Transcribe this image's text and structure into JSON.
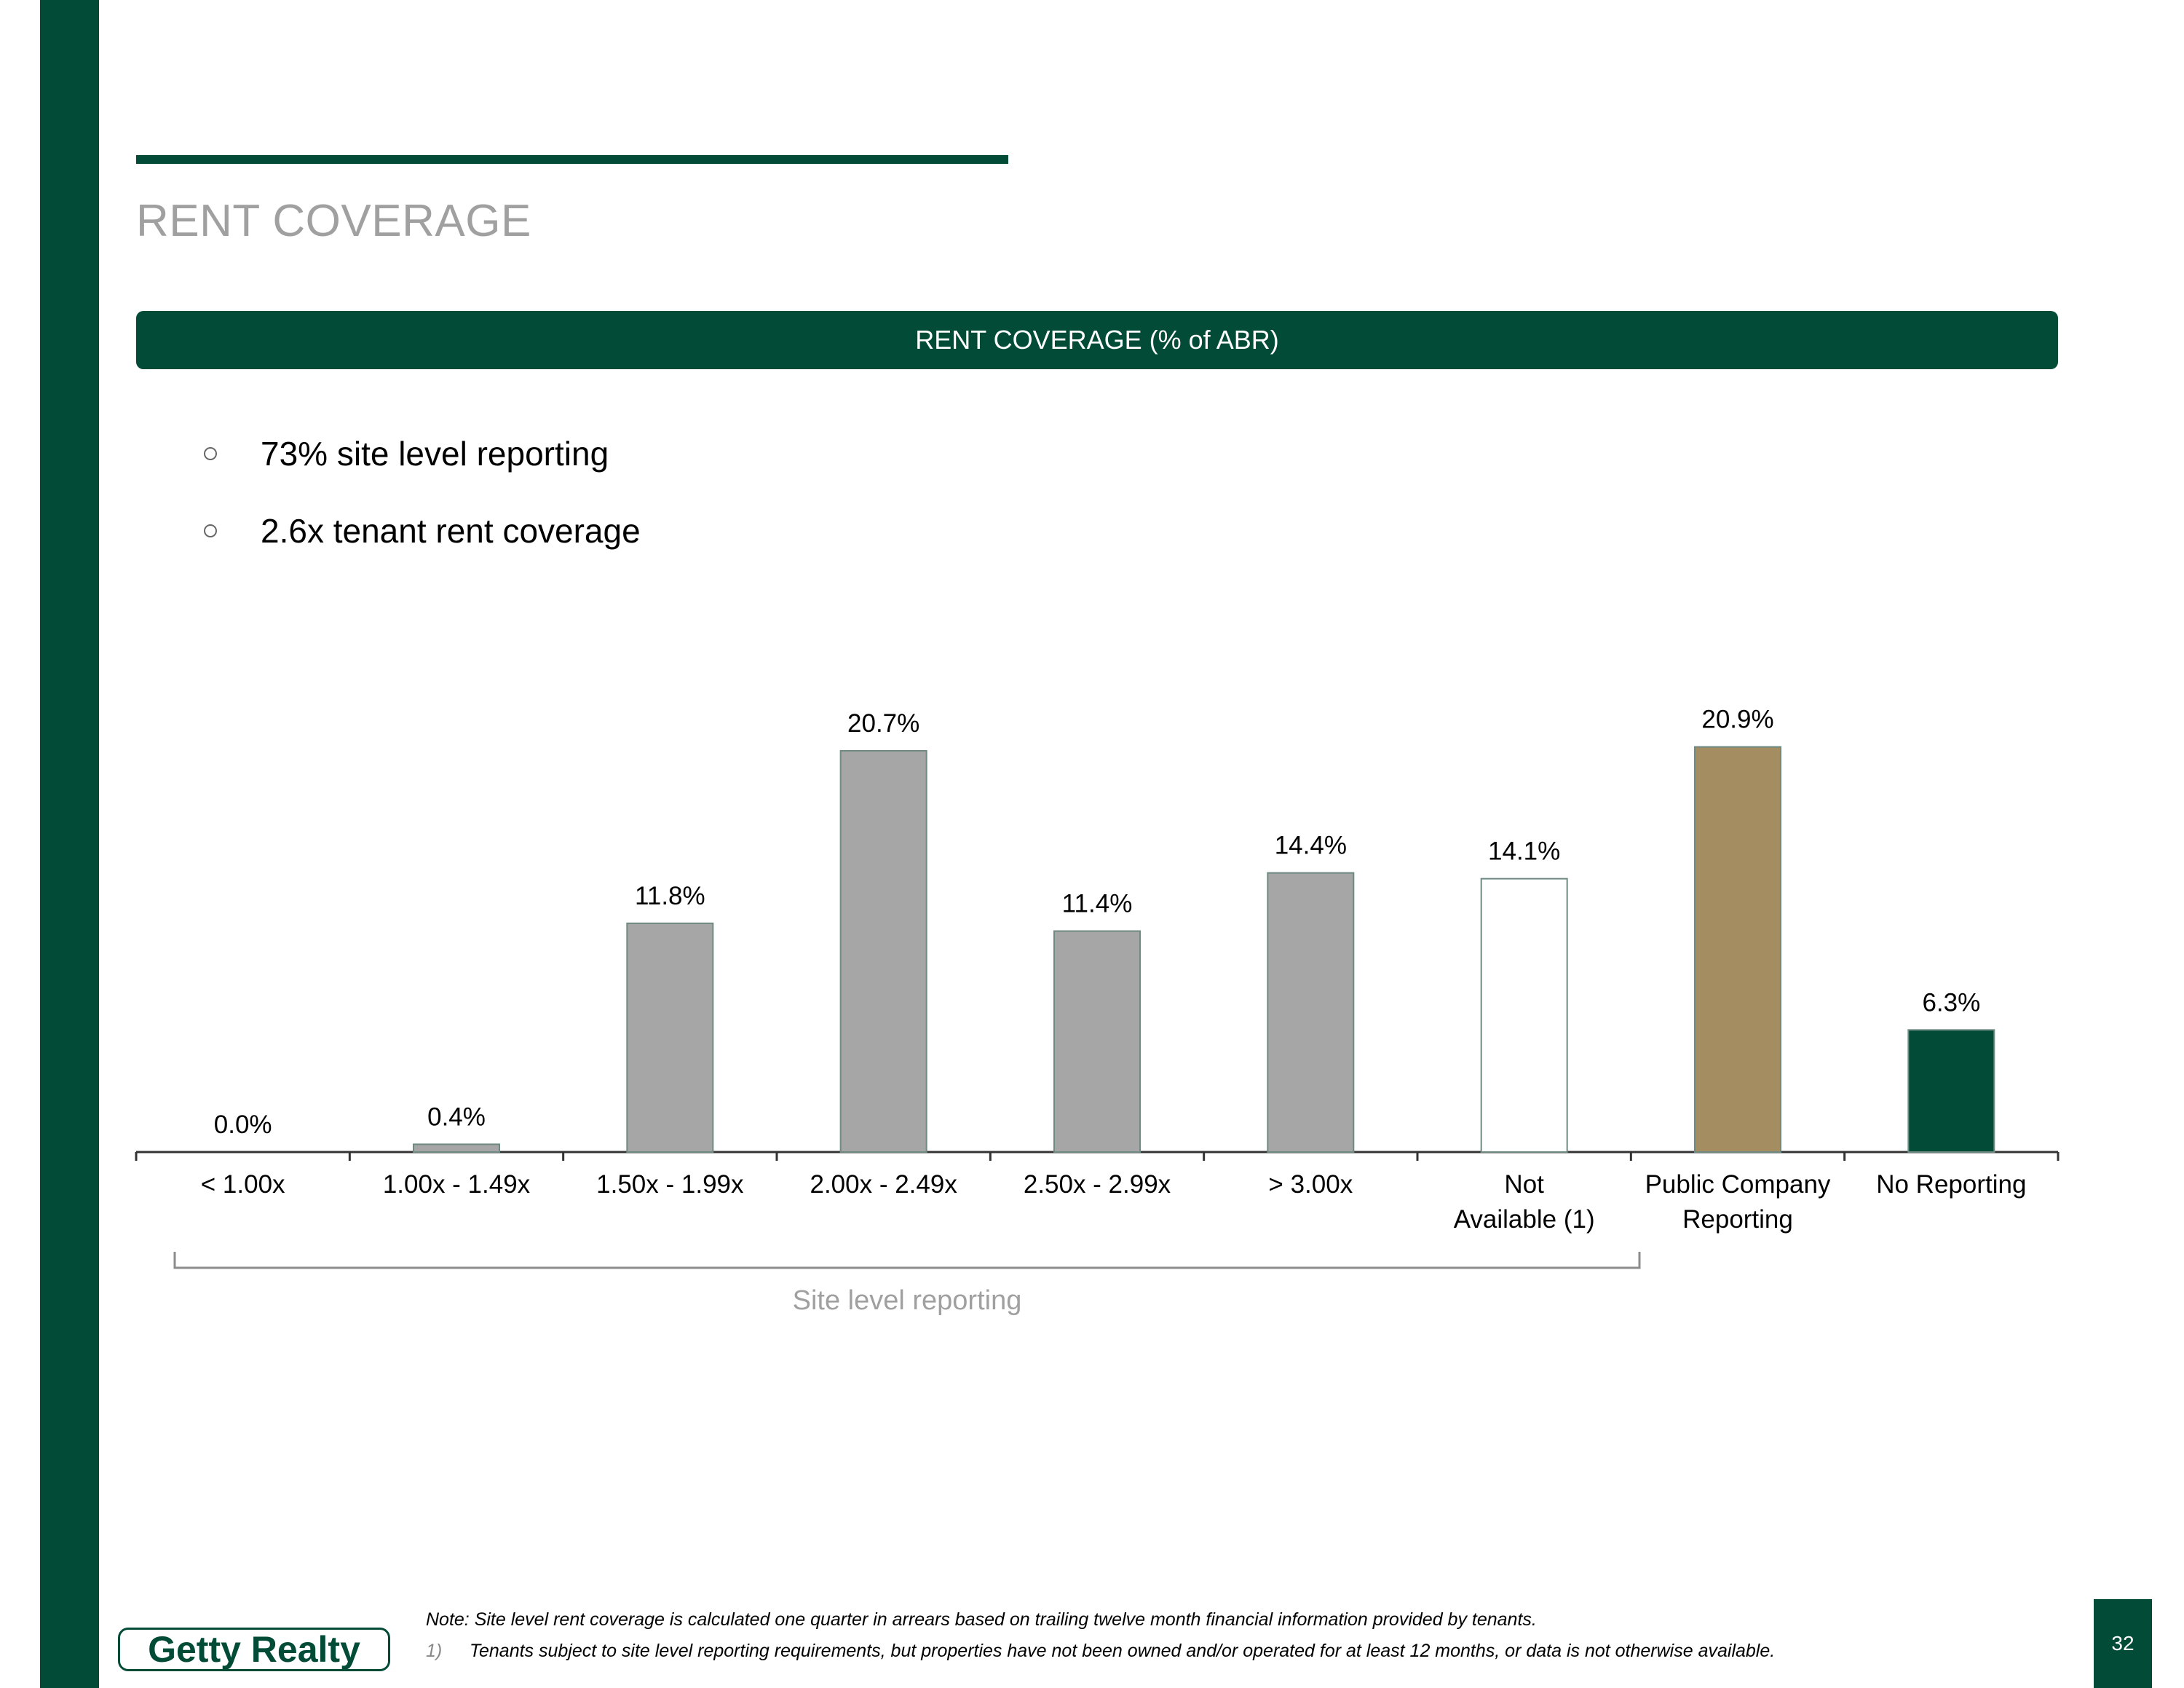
{
  "page": {
    "title": "RENT COVERAGE",
    "page_number": "32"
  },
  "chart_header": "RENT COVERAGE (% of ABR)",
  "bullets": [
    "73% site level reporting",
    "2.6x tenant rent coverage"
  ],
  "chart_data": {
    "type": "bar",
    "categories": [
      "< 1.00x",
      "1.00x - 1.49x",
      "1.50x - 1.99x",
      "2.00x - 2.49x",
      "2.50x - 2.99x",
      "> 3.00x",
      "Not Available (1)",
      "Public Company Reporting",
      "No Reporting"
    ],
    "category_lines": [
      [
        "< 1.00x"
      ],
      [
        "1.00x - 1.49x"
      ],
      [
        "1.50x - 1.99x"
      ],
      [
        "2.00x - 2.49x"
      ],
      [
        "2.50x - 2.99x"
      ],
      [
        "> 3.00x"
      ],
      [
        "Not",
        "Available (1)"
      ],
      [
        "Public Company",
        "Reporting"
      ],
      [
        "No Reporting"
      ]
    ],
    "values": [
      0.0,
      0.4,
      11.8,
      20.7,
      11.4,
      14.4,
      14.1,
      20.9,
      6.3
    ],
    "data_labels": [
      "0.0%",
      "0.4%",
      "11.8%",
      "20.7%",
      "11.4%",
      "14.4%",
      "14.1%",
      "20.9%",
      "6.3%"
    ],
    "colors": [
      "#a6a6a6",
      "#a6a6a6",
      "#a6a6a6",
      "#a6a6a6",
      "#a6a6a6",
      "#a6a6a6",
      "#ffffff",
      "#a38d61",
      "#024b37"
    ],
    "bar_outline": "#6f8a82",
    "ylim": [
      0,
      21
    ],
    "grid": false,
    "bracket_label": "Site level reporting",
    "bracket_span": [
      0,
      6
    ]
  },
  "footer": {
    "note": "Note: Site level rent coverage is calculated one quarter in arrears based on trailing twelve month financial information provided by tenants.",
    "footnote_number": "1)",
    "footnote_text": "Tenants subject to site level reporting requirements, but properties have not been owned and/or operated for at least 12 months, or data is not otherwise available.",
    "logo_text": "Getty Realty"
  },
  "colors": {
    "brand_green": "#024b37",
    "title_gray": "#a0a0a0"
  }
}
